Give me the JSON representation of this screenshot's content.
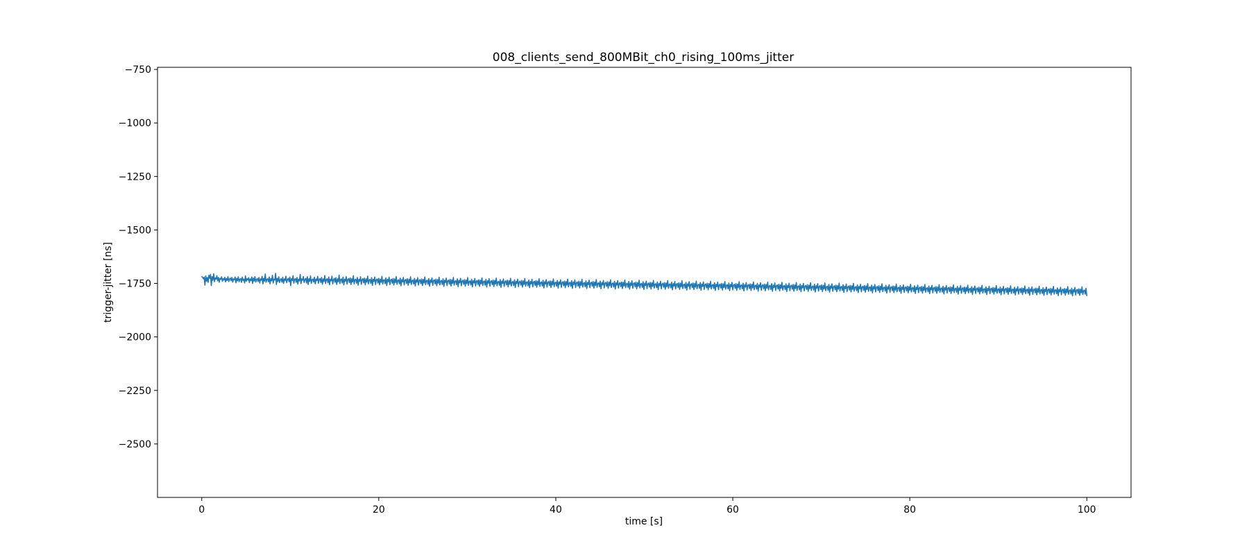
{
  "chart_data": {
    "type": "line",
    "title": "008_clients_send_800MBit_ch0_rising_100ms_jitter",
    "xlabel": "time [s]",
    "ylabel": "trigger-jitter [ns]",
    "xlim": [
      -5,
      105
    ],
    "ylim": [
      -2750,
      -740
    ],
    "xticks": [
      0,
      20,
      40,
      60,
      80,
      100
    ],
    "yticks": [
      -750,
      -1000,
      -1250,
      -1500,
      -1750,
      -2000,
      -2250,
      -2500
    ],
    "xtick_labels": [
      "0",
      "20",
      "40",
      "60",
      "80",
      "100"
    ],
    "ytick_labels": [
      "−750",
      "−1000",
      "−1250",
      "−1500",
      "−1750",
      "−2000",
      "−2250",
      "−2500"
    ],
    "grid": false,
    "series": [
      {
        "color": "#1f77b4",
        "x_start": 0,
        "x_step": 0.1,
        "values": [
          -1716,
          -1722,
          -1728,
          -1720,
          -1758,
          -1715,
          -1740,
          -1722,
          -1745,
          -1712,
          -1726,
          -1708,
          -1760,
          -1718,
          -1735,
          -1705,
          -1742,
          -1724,
          -1730,
          -1714,
          -1738,
          -1722,
          -1745,
          -1726,
          -1731,
          -1719,
          -1740,
          -1728,
          -1734,
          -1721,
          -1743,
          -1727,
          -1736,
          -1718,
          -1741,
          -1730,
          -1725,
          -1737,
          -1722,
          -1744,
          -1729,
          -1733,
          -1720,
          -1747,
          -1726,
          -1738,
          -1719,
          -1742,
          -1731,
          -1727,
          -1745,
          -1721,
          -1736,
          -1730,
          -1748,
          -1715,
          -1740,
          -1728,
          -1734,
          -1723,
          -1746,
          -1729,
          -1737,
          -1720,
          -1750,
          -1725,
          -1739,
          -1718,
          -1744,
          -1732,
          -1727,
          -1741,
          -1722,
          -1748,
          -1729,
          -1735,
          -1717,
          -1752,
          -1726,
          -1740,
          -1706,
          -1745,
          -1731,
          -1728,
          -1743,
          -1720,
          -1752,
          -1727,
          -1738,
          -1712,
          -1748,
          -1730,
          -1734,
          -1703,
          -1755,
          -1726,
          -1741,
          -1719,
          -1746,
          -1733,
          -1728,
          -1744,
          -1721,
          -1750,
          -1729,
          -1737,
          -1716,
          -1747,
          -1732,
          -1726,
          -1742,
          -1720,
          -1760,
          -1728,
          -1736,
          -1714,
          -1749,
          -1731,
          -1727,
          -1745,
          -1722,
          -1753,
          -1730,
          -1738,
          -1708,
          -1751,
          -1729,
          -1735,
          -1718,
          -1746,
          -1732,
          -1726,
          -1748,
          -1719,
          -1755,
          -1728,
          -1740,
          -1715,
          -1750,
          -1733,
          -1729,
          -1744,
          -1721,
          -1752,
          -1730,
          -1737,
          -1717,
          -1749,
          -1731,
          -1727,
          -1746,
          -1722,
          -1754,
          -1729,
          -1741,
          -1713,
          -1750,
          -1732,
          -1728,
          -1747,
          -1720,
          -1756,
          -1730,
          -1738,
          -1716,
          -1752,
          -1733,
          -1726,
          -1745,
          -1723,
          -1755,
          -1729,
          -1742,
          -1711,
          -1751,
          -1731,
          -1729,
          -1748,
          -1721,
          -1757,
          -1730,
          -1739,
          -1718,
          -1753,
          -1732,
          -1727,
          -1746,
          -1724,
          -1755,
          -1728,
          -1743,
          -1714,
          -1752,
          -1733,
          -1730,
          -1749,
          -1722,
          -1758,
          -1731,
          -1740,
          -1719,
          -1754,
          -1732,
          -1728,
          -1747,
          -1725,
          -1756,
          -1729,
          -1744,
          -1716,
          -1752,
          -1734,
          -1731,
          -1750,
          -1723,
          -1759,
          -1730,
          -1741,
          -1720,
          -1755,
          -1733,
          -1729,
          -1748,
          -1726,
          -1757,
          -1730,
          -1745,
          -1717,
          -1753,
          -1735,
          -1732,
          -1751,
          -1724,
          -1760,
          -1731,
          -1742,
          -1721,
          -1756,
          -1734,
          -1730,
          -1749,
          -1727,
          -1758,
          -1729,
          -1746,
          -1718,
          -1754,
          -1736,
          -1733,
          -1752,
          -1725,
          -1761,
          -1732,
          -1743,
          -1722,
          -1757,
          -1735,
          -1731,
          -1750,
          -1728,
          -1759,
          -1730,
          -1747,
          -1719,
          -1755,
          -1737,
          -1734,
          -1753,
          -1726,
          -1762,
          -1733,
          -1744,
          -1723,
          -1758,
          -1736,
          -1732,
          -1751,
          -1729,
          -1760,
          -1731,
          -1748,
          -1720,
          -1756,
          -1738,
          -1735,
          -1754,
          -1727,
          -1763,
          -1734,
          -1745,
          -1724,
          -1759,
          -1737,
          -1733,
          -1752,
          -1730,
          -1761,
          -1732,
          -1749,
          -1721,
          -1757,
          -1739,
          -1736,
          -1755,
          -1728,
          -1764,
          -1735,
          -1746,
          -1725,
          -1760,
          -1738,
          -1734,
          -1753,
          -1731,
          -1762,
          -1733,
          -1750,
          -1722,
          -1758,
          -1740,
          -1737,
          -1756,
          -1729,
          -1765,
          -1736,
          -1747,
          -1726,
          -1761,
          -1739,
          -1735,
          -1754,
          -1732,
          -1763,
          -1734,
          -1751,
          -1723,
          -1759,
          -1741,
          -1738,
          -1757,
          -1730,
          -1766,
          -1737,
          -1748,
          -1727,
          -1762,
          -1740,
          -1736,
          -1755,
          -1733,
          -1764,
          -1735,
          -1752,
          -1724,
          -1760,
          -1742,
          -1739,
          -1758,
          -1731,
          -1767,
          -1738,
          -1749,
          -1728,
          -1763,
          -1741,
          -1737,
          -1756,
          -1734,
          -1765,
          -1736,
          -1753,
          -1725,
          -1761,
          -1743,
          -1740,
          -1759,
          -1732,
          -1768,
          -1739,
          -1750,
          -1729,
          -1764,
          -1742,
          -1738,
          -1757,
          -1735,
          -1766,
          -1737,
          -1754,
          -1726,
          -1762,
          -1744,
          -1741,
          -1760,
          -1733,
          -1769,
          -1740,
          -1751,
          -1730,
          -1765,
          -1743,
          -1739,
          -1758,
          -1736,
          -1767,
          -1738,
          -1755,
          -1727,
          -1763,
          -1745,
          -1742,
          -1761,
          -1734,
          -1770,
          -1741,
          -1752,
          -1731,
          -1766,
          -1744,
          -1740,
          -1759,
          -1737,
          -1768,
          -1739,
          -1756,
          -1728,
          -1764,
          -1746,
          -1743,
          -1762,
          -1735,
          -1771,
          -1742,
          -1753,
          -1732,
          -1767,
          -1745,
          -1741,
          -1760,
          -1738,
          -1769,
          -1740,
          -1757,
          -1729,
          -1765,
          -1747,
          -1744,
          -1763,
          -1736,
          -1772,
          -1743,
          -1754,
          -1733,
          -1768,
          -1746,
          -1742,
          -1761,
          -1739,
          -1770,
          -1741,
          -1758,
          -1730,
          -1766,
          -1748,
          -1745,
          -1764,
          -1737,
          -1773,
          -1744,
          -1755,
          -1734,
          -1769,
          -1747,
          -1743,
          -1762,
          -1740,
          -1771,
          -1742,
          -1759,
          -1731,
          -1767,
          -1749,
          -1746,
          -1765,
          -1738,
          -1774,
          -1745,
          -1756,
          -1735,
          -1770,
          -1748,
          -1744,
          -1763,
          -1741,
          -1772,
          -1743,
          -1760,
          -1732,
          -1768,
          -1750,
          -1747,
          -1766,
          -1739,
          -1775,
          -1746,
          -1757,
          -1736,
          -1771,
          -1749,
          -1745,
          -1764,
          -1742,
          -1773,
          -1744,
          -1761,
          -1733,
          -1769,
          -1751,
          -1748,
          -1767,
          -1740,
          -1776,
          -1747,
          -1758,
          -1737,
          -1772,
          -1750,
          -1746,
          -1765,
          -1743,
          -1774,
          -1745,
          -1762,
          -1734,
          -1770,
          -1752,
          -1749,
          -1768,
          -1741,
          -1777,
          -1748,
          -1759,
          -1738,
          -1773,
          -1751,
          -1747,
          -1766,
          -1744,
          -1775,
          -1746,
          -1763,
          -1735,
          -1771,
          -1753,
          -1750,
          -1769,
          -1742,
          -1778,
          -1749,
          -1760,
          -1739,
          -1774,
          -1752,
          -1748,
          -1767,
          -1745,
          -1776,
          -1747,
          -1764,
          -1736,
          -1772,
          -1754,
          -1751,
          -1770,
          -1743,
          -1779,
          -1750,
          -1761,
          -1740,
          -1775,
          -1753,
          -1749,
          -1768,
          -1746,
          -1777,
          -1748,
          -1765,
          -1737,
          -1773,
          -1755,
          -1752,
          -1771,
          -1744,
          -1780,
          -1751,
          -1762,
          -1741,
          -1776,
          -1754,
          -1750,
          -1769,
          -1747,
          -1778,
          -1749,
          -1766,
          -1738,
          -1774,
          -1756,
          -1753,
          -1772,
          -1745,
          -1781,
          -1752,
          -1763,
          -1742,
          -1777,
          -1755,
          -1751,
          -1770,
          -1748,
          -1779,
          -1750,
          -1767,
          -1739,
          -1775,
          -1757,
          -1754,
          -1773,
          -1746,
          -1782,
          -1753,
          -1764,
          -1743,
          -1778,
          -1756,
          -1752,
          -1771,
          -1749,
          -1780,
          -1751,
          -1768,
          -1740,
          -1776,
          -1758,
          -1755,
          -1774,
          -1747,
          -1783,
          -1754,
          -1765,
          -1744,
          -1779,
          -1757,
          -1753,
          -1772,
          -1750,
          -1781,
          -1752,
          -1769,
          -1741,
          -1777,
          -1759,
          -1756,
          -1775,
          -1748,
          -1784,
          -1755,
          -1766,
          -1745,
          -1780,
          -1758,
          -1754,
          -1773,
          -1751,
          -1782,
          -1753,
          -1770,
          -1742,
          -1778,
          -1760,
          -1757,
          -1776,
          -1749,
          -1785,
          -1756,
          -1767,
          -1746,
          -1781,
          -1759,
          -1755,
          -1774,
          -1752,
          -1783,
          -1754,
          -1771,
          -1743,
          -1779,
          -1761,
          -1758,
          -1777,
          -1750,
          -1786,
          -1757,
          -1768,
          -1747,
          -1782,
          -1760,
          -1756,
          -1775,
          -1753,
          -1784,
          -1755,
          -1772,
          -1744,
          -1780,
          -1762,
          -1759,
          -1778,
          -1751,
          -1787,
          -1758,
          -1769,
          -1748,
          -1783,
          -1761,
          -1757,
          -1776,
          -1754,
          -1785,
          -1756,
          -1773,
          -1745,
          -1781,
          -1763,
          -1760,
          -1779,
          -1752,
          -1788,
          -1759,
          -1770,
          -1749,
          -1784,
          -1762,
          -1758,
          -1777,
          -1755,
          -1786,
          -1757,
          -1774,
          -1746,
          -1782,
          -1764,
          -1761,
          -1780,
          -1753,
          -1789,
          -1760,
          -1771,
          -1750,
          -1785,
          -1763,
          -1759,
          -1778,
          -1756,
          -1787,
          -1758,
          -1775,
          -1747,
          -1783,
          -1765,
          -1762,
          -1781,
          -1754,
          -1790,
          -1761,
          -1772,
          -1751,
          -1786,
          -1764,
          -1760,
          -1779,
          -1757,
          -1788,
          -1759,
          -1776,
          -1748,
          -1784,
          -1766,
          -1763,
          -1782,
          -1755,
          -1791,
          -1762,
          -1773,
          -1752,
          -1787,
          -1765,
          -1761,
          -1780,
          -1758,
          -1789,
          -1760,
          -1777,
          -1749,
          -1785,
          -1767,
          -1764,
          -1783,
          -1756,
          -1792,
          -1763,
          -1774,
          -1753,
          -1788,
          -1766,
          -1762,
          -1781,
          -1759,
          -1790,
          -1761,
          -1778,
          -1750,
          -1786,
          -1768,
          -1765,
          -1784,
          -1757,
          -1793,
          -1764,
          -1775,
          -1754,
          -1789,
          -1767,
          -1763,
          -1782,
          -1760,
          -1791,
          -1762,
          -1779,
          -1751,
          -1787,
          -1769,
          -1766,
          -1785,
          -1758,
          -1794,
          -1765,
          -1776,
          -1755,
          -1790,
          -1768,
          -1764,
          -1783,
          -1761,
          -1792,
          -1763,
          -1780,
          -1752,
          -1788,
          -1770,
          -1767,
          -1786,
          -1759,
          -1795,
          -1766,
          -1777,
          -1756,
          -1791,
          -1769,
          -1765,
          -1784,
          -1762,
          -1793,
          -1764,
          -1781,
          -1753,
          -1789,
          -1771,
          -1768,
          -1787,
          -1760,
          -1796,
          -1767,
          -1778,
          -1757,
          -1792,
          -1770,
          -1766,
          -1785,
          -1763,
          -1794,
          -1765,
          -1782,
          -1754,
          -1790,
          -1772,
          -1769,
          -1788,
          -1761,
          -1797,
          -1768,
          -1779,
          -1758,
          -1793,
          -1771,
          -1767,
          -1786,
          -1764,
          -1795,
          -1766,
          -1783,
          -1755,
          -1791,
          -1773,
          -1770,
          -1789,
          -1762,
          -1798,
          -1769,
          -1780,
          -1759,
          -1794,
          -1772,
          -1768,
          -1787,
          -1765,
          -1796,
          -1767,
          -1784,
          -1756,
          -1792,
          -1774,
          -1771,
          -1790,
          -1763,
          -1799,
          -1770,
          -1781,
          -1760,
          -1795,
          -1773,
          -1769,
          -1788,
          -1766,
          -1797,
          -1768,
          -1785,
          -1757,
          -1793,
          -1775,
          -1772,
          -1791,
          -1764,
          -1800,
          -1771,
          -1782,
          -1761,
          -1796,
          -1774,
          -1770,
          -1789,
          -1767,
          -1798,
          -1769,
          -1786,
          -1758,
          -1794,
          -1776,
          -1773,
          -1792,
          -1765,
          -1801,
          -1772,
          -1783,
          -1762,
          -1797,
          -1775,
          -1771,
          -1790,
          -1768,
          -1799,
          -1770,
          -1787,
          -1759,
          -1795,
          -1777,
          -1774,
          -1793,
          -1766,
          -1802,
          -1773,
          -1784,
          -1763,
          -1798,
          -1776,
          -1772,
          -1791,
          -1769,
          -1800,
          -1771,
          -1788,
          -1760,
          -1796,
          -1778,
          -1775,
          -1794,
          -1767,
          -1803,
          -1774,
          -1785,
          -1764,
          -1799,
          -1777,
          -1773,
          -1792,
          -1770,
          -1801,
          -1772,
          -1789,
          -1761,
          -1797,
          -1779,
          -1776,
          -1795,
          -1768,
          -1804,
          -1775,
          -1786,
          -1765,
          -1800,
          -1778,
          -1774,
          -1793,
          -1771,
          -1802,
          -1773,
          -1790,
          -1762,
          -1798,
          -1780,
          -1777,
          -1796,
          -1769,
          -1805,
          -1776,
          -1787,
          -1766,
          -1801,
          -1779,
          -1775,
          -1794,
          -1772,
          -1803,
          -1774,
          -1791,
          -1763,
          -1799,
          -1781,
          -1778,
          -1797,
          -1770,
          -1806,
          -1777,
          -1788,
          -1767,
          -1802,
          -1780,
          -1776,
          -1795,
          -1773,
          -1804,
          -1775,
          -1792,
          -1764,
          -1800,
          -1782,
          -1779,
          -1798,
          -1771,
          -1807,
          -1778,
          -1789,
          -1768,
          -1803,
          -1781,
          -1777,
          -1796,
          -1774,
          -1805,
          -1776,
          -1793,
          -1765,
          -1801,
          -1783,
          -1780,
          -1799,
          -1772,
          -1808,
          -1779,
          -1790,
          -1769,
          -1804,
          -1782,
          -1778,
          -1797,
          -1775,
          -1806,
          -1777,
          -1794,
          -1766,
          -1802,
          -1784,
          -1781,
          -1800,
          -1773,
          -1809
        ]
      }
    ]
  }
}
